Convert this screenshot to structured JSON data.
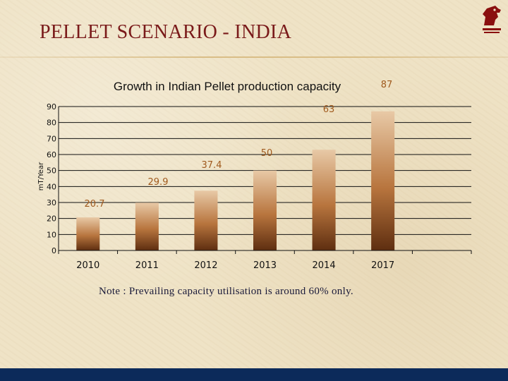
{
  "slide": {
    "title": "PELLET SCENARIO - INDIA",
    "note": "Note : Prevailing capacity utilisation is around 60% only.",
    "logo_icon": "horse-head-logo-icon"
  },
  "chart_data": {
    "type": "bar",
    "title": "Growth in Indian Pellet production capacity",
    "xlabel": "",
    "ylabel": "mT/Year",
    "categories": [
      "2010",
      "2011",
      "2012",
      "2013",
      "2014",
      "2017"
    ],
    "values": [
      20.7,
      29.9,
      37.4,
      50,
      63,
      87
    ],
    "data_labels": [
      "20.7",
      "29.9",
      "37.4",
      "50",
      "63",
      "87"
    ],
    "ylim": [
      0,
      90
    ],
    "yticks": [
      "0",
      "10",
      "20",
      "30",
      "40",
      "50",
      "60",
      "70",
      "80",
      "90"
    ],
    "grid": true,
    "legend": "none",
    "colors": {
      "bar_top": "#e8c9a6",
      "bar_mid": "#b8753e",
      "bar_bottom": "#5e2e10",
      "label": "#a05a1e",
      "grid": "#111111"
    }
  }
}
